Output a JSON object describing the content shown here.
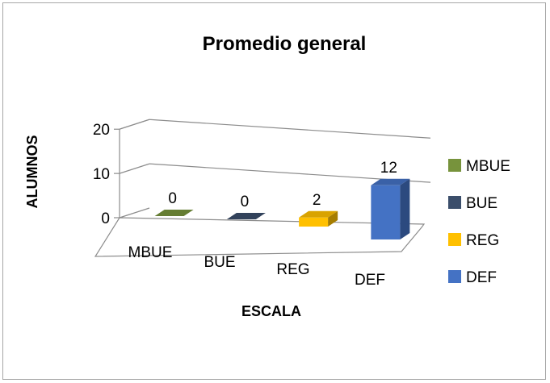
{
  "chart_data": {
    "type": "bar",
    "title": "Promedio general",
    "xlabel": "ESCALA",
    "ylabel": "ALUMNOS",
    "categories": [
      "MBUE",
      "BUE",
      "REG",
      "DEF"
    ],
    "values": [
      0,
      0,
      2,
      12
    ],
    "data_labels": [
      "0",
      "0",
      "2",
      "12"
    ],
    "colors": [
      "#77933c",
      "#3b4e6b",
      "#ffc000",
      "#4472c4"
    ],
    "yticks": [
      "0",
      "10",
      "20"
    ],
    "ylim": [
      0,
      20
    ],
    "grid": true,
    "legend_position": "right",
    "legend": [
      "MBUE",
      "BUE",
      "REG",
      "DEF"
    ],
    "three_d": true
  }
}
